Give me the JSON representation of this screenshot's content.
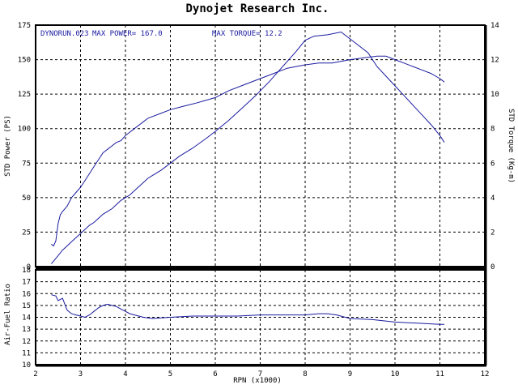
{
  "chart_data": {
    "type": "line",
    "title": "Dynojet  Research  Inc.",
    "annotations": {
      "run": "DYNORUN.023",
      "max_power": "MAX POWER= 167.0",
      "max_torque": "MAX TORQUE= 12.2"
    },
    "xlabel": "RPN (x1000)",
    "x_ticks": [
      "2",
      "3",
      "4",
      "5",
      "6",
      "7",
      "8",
      "9",
      "10",
      "11",
      "12"
    ],
    "xlim": [
      2,
      12
    ],
    "grid": true,
    "colors": {
      "series": "#1a1aa0",
      "axes": "#000000",
      "grid": "#000000"
    },
    "top_panel": {
      "ylabel_left": "STD Power (PS)",
      "ylabel_right": "STD Torque (Kg-m)",
      "ylim_left": [
        0,
        175
      ],
      "ylim_right": [
        0,
        14
      ],
      "left_ticks": [
        "175",
        "150",
        "125",
        "100",
        "75",
        "50",
        "25",
        "0"
      ],
      "right_ticks": [
        "14",
        "12",
        "10",
        "8",
        "6",
        "4",
        "2",
        "0"
      ],
      "series": [
        {
          "name": "STD Power",
          "axis": "left",
          "x": [
            2.35,
            2.4,
            2.5,
            2.6,
            2.7,
            2.8,
            2.9,
            3.0,
            3.1,
            3.2,
            3.3,
            3.4,
            3.5,
            3.6,
            3.7,
            3.8,
            3.9,
            4.0,
            4.1,
            4.2,
            4.3,
            4.4,
            4.5,
            4.6,
            4.8,
            5.0,
            5.2,
            5.5,
            5.8,
            6.0,
            6.3,
            6.6,
            6.9,
            7.2,
            7.5,
            7.8,
            8.0,
            8.2,
            8.5,
            8.8,
            9.0,
            9.2,
            9.4,
            9.6,
            9.8,
            10.0,
            10.2,
            10.4,
            10.6,
            10.8,
            11.0,
            11.1
          ],
          "y": [
            2,
            4,
            8,
            12,
            15,
            18,
            21,
            24,
            27,
            30,
            32,
            35,
            38,
            40,
            42,
            45,
            48,
            50,
            52,
            55,
            58,
            61,
            64,
            66,
            70,
            75,
            80,
            86,
            93,
            98,
            106,
            115,
            124,
            134,
            145,
            156,
            164,
            167,
            168,
            170,
            165,
            160,
            155,
            145,
            138,
            131,
            124,
            117,
            110,
            103,
            95,
            90
          ]
        },
        {
          "name": "STD Torque",
          "axis": "right",
          "x": [
            2.35,
            2.4,
            2.45,
            2.5,
            2.55,
            2.6,
            2.7,
            2.8,
            2.9,
            3.0,
            3.1,
            3.2,
            3.3,
            3.4,
            3.5,
            3.6,
            3.7,
            3.8,
            3.9,
            4.0,
            4.1,
            4.2,
            4.3,
            4.4,
            4.5,
            4.6,
            4.8,
            5.0,
            5.3,
            5.6,
            6.0,
            6.3,
            6.6,
            7.0,
            7.3,
            7.6,
            8.0,
            8.3,
            8.6,
            9.0,
            9.3,
            9.6,
            9.8,
            10.0,
            10.2,
            10.4,
            10.6,
            10.8,
            11.0,
            11.1
          ],
          "y": [
            1.3,
            1.2,
            1.5,
            2.5,
            3.0,
            3.2,
            3.5,
            4.0,
            4.3,
            4.6,
            5.0,
            5.4,
            5.8,
            6.2,
            6.6,
            6.8,
            7.0,
            7.2,
            7.3,
            7.6,
            7.8,
            8.0,
            8.2,
            8.4,
            8.6,
            8.7,
            8.9,
            9.1,
            9.3,
            9.5,
            9.8,
            10.2,
            10.5,
            10.9,
            11.2,
            11.5,
            11.7,
            11.8,
            11.8,
            12.0,
            12.1,
            12.2,
            12.2,
            12.0,
            11.8,
            11.6,
            11.4,
            11.2,
            10.9,
            10.7
          ]
        }
      ]
    },
    "bottom_panel": {
      "ylabel": "Air-Fuel Ratio",
      "ylim": [
        10,
        18
      ],
      "ticks": [
        "18",
        "17",
        "16",
        "15",
        "14",
        "13",
        "12",
        "11",
        "10"
      ],
      "series": [
        {
          "name": "Air-Fuel Ratio",
          "x": [
            2.35,
            2.45,
            2.5,
            2.6,
            2.7,
            2.8,
            2.9,
            3.0,
            3.1,
            3.2,
            3.3,
            3.4,
            3.5,
            3.6,
            3.7,
            3.8,
            3.9,
            4.0,
            4.1,
            4.2,
            4.4,
            4.6,
            5.0,
            5.5,
            6.0,
            6.5,
            7.0,
            7.5,
            8.0,
            8.3,
            8.5,
            8.7,
            9.0,
            9.5,
            10.0,
            10.5,
            11.0,
            11.1
          ],
          "y": [
            15.9,
            15.8,
            15.4,
            15.6,
            14.6,
            14.3,
            14.2,
            14.1,
            14.0,
            14.2,
            14.5,
            14.8,
            15.0,
            15.1,
            15.0,
            14.9,
            14.7,
            14.5,
            14.3,
            14.2,
            14.0,
            13.9,
            14.0,
            14.1,
            14.1,
            14.1,
            14.2,
            14.2,
            14.2,
            14.3,
            14.3,
            14.2,
            13.9,
            13.8,
            13.6,
            13.5,
            13.4,
            13.4
          ]
        }
      ]
    }
  }
}
